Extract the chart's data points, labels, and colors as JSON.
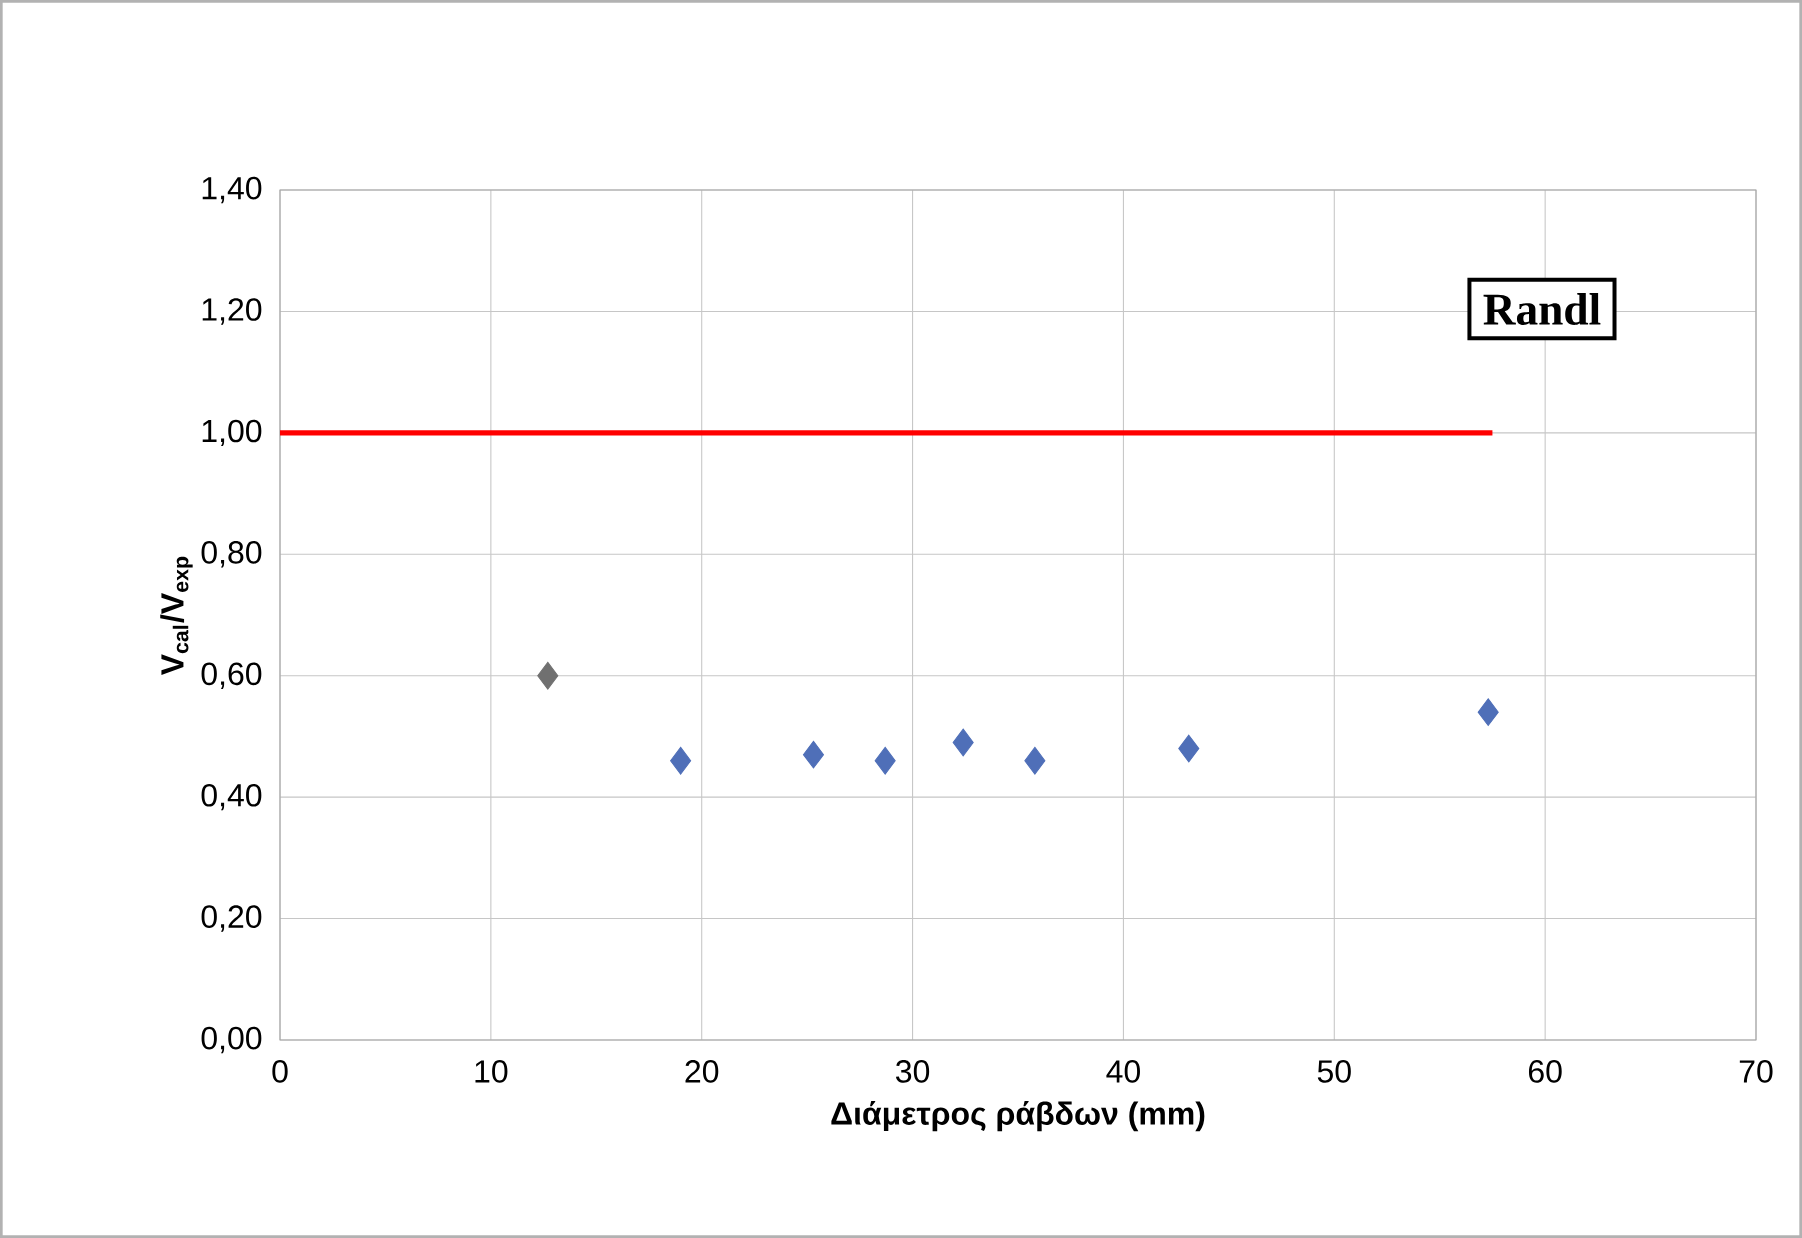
{
  "chart_data": {
    "type": "scatter",
    "xlabel": "Διάμετρος ράβδων (mm)",
    "ylabel": "V$_{cal}$/V$_{exp}$",
    "xlim": [
      0,
      70
    ],
    "xticks": [
      0,
      10,
      20,
      30,
      40,
      50,
      60,
      70
    ],
    "ylim": [
      0,
      1.4
    ],
    "yticks": [
      {
        "value": 0,
        "label": "0,00"
      },
      {
        "value": 0.2,
        "label": "0,20"
      },
      {
        "value": 0.4,
        "label": "0,40"
      },
      {
        "value": 0.6,
        "label": "0,60"
      },
      {
        "value": 0.8,
        "label": "0,80"
      },
      {
        "value": 1.0,
        "label": "1,00"
      },
      {
        "value": 1.2,
        "label": "1,20"
      },
      {
        "value": 1.4,
        "label": "1,40"
      }
    ],
    "grid": true,
    "marker": "diamond",
    "annotations": [
      "Randl"
    ],
    "series": [
      {
        "x": [
          12.7,
          19.0,
          25.3,
          28.7,
          32.4,
          35.8,
          43.1,
          57.3
        ],
        "values": [
          0.6,
          0.46,
          0.47,
          0.46,
          0.49,
          0.46,
          0.48,
          0.54
        ],
        "color": "#4f6fb8",
        "colors": [
          "#707070",
          "#4f6fb8",
          "#4f6fb8",
          "#4f6fb8",
          "#4f6fb8",
          "#4f6fb8",
          "#4f6fb8",
          "#4f6fb8"
        ]
      },
      {
        "type": "line",
        "x": [
          0,
          57.5
        ],
        "values": [
          1.0,
          1.0
        ],
        "color": "#ff0000",
        "marker": "none"
      }
    ]
  }
}
